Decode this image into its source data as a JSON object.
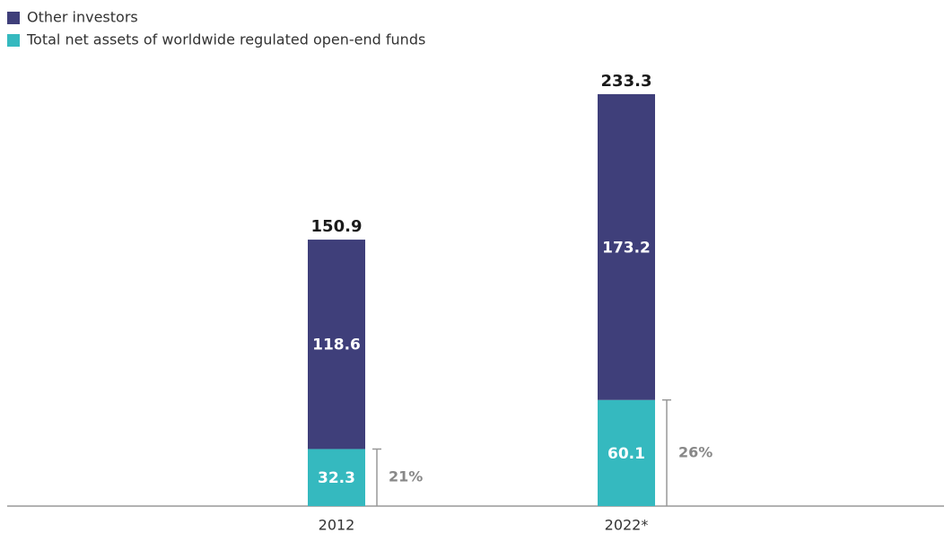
{
  "chart_data": {
    "type": "stacked-bar",
    "categories": [
      "2012",
      "2022*"
    ],
    "series": [
      {
        "name": "Total net assets of worldwide regulated open-end funds",
        "color": "#35b9bf",
        "values": [
          32.3,
          60.1
        ]
      },
      {
        "name": "Other investors",
        "color": "#3f3f7a",
        "values": [
          118.6,
          173.2
        ]
      }
    ],
    "totals": [
      150.9,
      233.3
    ],
    "shares": [
      21,
      26
    ],
    "share_labels": [
      "21%",
      "26%"
    ],
    "ylim": [
      0,
      286.6
    ]
  }
}
